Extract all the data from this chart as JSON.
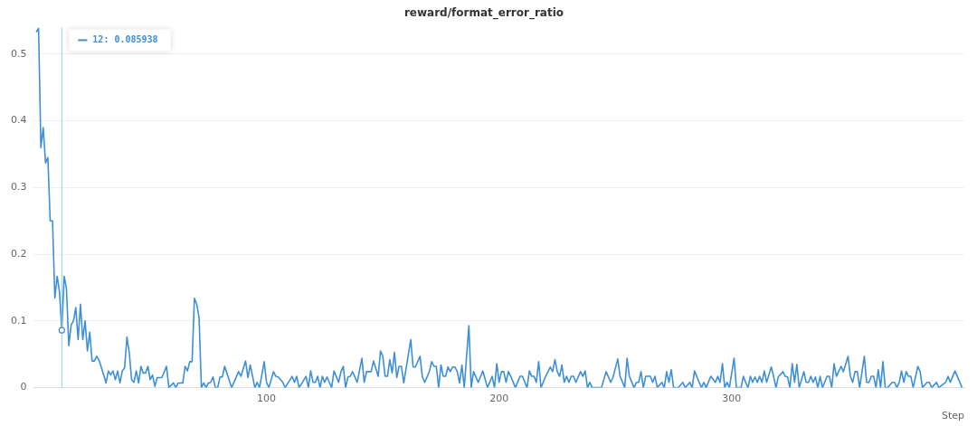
{
  "chart_data": {
    "type": "line",
    "title": "reward/format_error_ratio",
    "xlabel": "Step",
    "xlim": [
      0,
      400
    ],
    "xticks": [
      100,
      200,
      300
    ],
    "ylim": [
      0,
      0.54
    ],
    "yticks": [
      0,
      0.1,
      0.2,
      0.3,
      0.4,
      0.5
    ],
    "grid": "y",
    "legend": false,
    "marker": "none",
    "line_style": "solid",
    "ref_lines": [
      {
        "axis": "x",
        "value": 12,
        "color": "#8fd3e8"
      }
    ],
    "annotations": [
      "12: 0.085938"
    ],
    "series": [
      {
        "color": "#3d8fd6",
        "x": [
          1,
          2,
          3,
          4,
          5,
          6,
          7,
          8,
          9,
          10,
          11,
          12,
          13,
          14,
          15,
          16,
          17,
          18,
          19,
          20,
          21,
          22,
          23,
          24,
          25,
          26,
          27,
          28,
          30,
          31,
          32,
          33,
          34,
          35,
          36,
          37,
          38,
          39,
          40,
          41,
          42,
          43,
          44,
          45,
          46,
          47,
          48,
          49,
          50,
          51,
          52,
          53,
          55,
          57,
          58,
          60,
          61,
          62,
          64,
          65,
          66,
          67,
          68,
          69,
          70,
          71,
          72,
          73,
          74,
          75,
          76,
          77,
          78,
          79,
          80,
          81,
          82,
          85,
          88,
          89,
          91,
          92,
          93,
          95,
          96,
          97,
          99,
          100,
          101,
          103,
          104,
          105,
          107,
          108,
          111,
          112,
          113,
          114,
          117,
          118,
          119,
          120,
          121,
          122,
          123,
          124,
          125,
          126,
          127,
          128,
          129,
          131,
          132,
          133,
          134,
          135,
          136,
          137,
          139,
          141,
          142,
          143,
          145,
          146,
          148,
          149,
          150,
          151,
          152,
          153,
          154,
          155,
          156,
          157,
          158,
          159,
          162,
          163,
          164,
          166,
          167,
          168,
          170,
          171,
          172,
          173,
          174,
          175,
          176,
          177,
          178,
          179,
          180,
          181,
          182,
          183,
          184,
          185,
          187,
          188,
          189,
          191,
          193,
          195,
          197,
          198,
          199,
          200,
          201,
          202,
          203,
          204,
          205,
          207,
          209,
          210,
          212,
          213,
          214,
          215,
          216,
          217,
          218,
          220,
          222,
          223,
          224,
          225,
          226,
          227,
          228,
          229,
          230,
          231,
          232,
          233,
          235,
          236,
          237,
          238,
          239,
          240,
          244,
          246,
          248,
          249,
          251,
          252,
          254,
          255,
          256,
          258,
          259,
          260,
          261,
          262,
          263,
          265,
          266,
          267,
          268,
          270,
          271,
          272,
          273,
          274,
          275,
          277,
          279,
          280,
          282,
          283,
          284,
          286,
          287,
          288,
          289,
          291,
          293,
          294,
          295,
          296,
          297,
          298,
          299,
          301,
          302,
          304,
          305,
          306,
          307,
          308,
          309,
          310,
          311,
          312,
          313,
          314,
          315,
          317,
          318,
          319,
          320,
          322,
          323,
          324,
          325,
          326,
          327,
          328,
          329,
          331,
          332,
          333,
          334,
          335,
          336,
          337,
          338,
          339,
          341,
          342,
          343,
          344,
          345,
          347,
          348,
          350,
          351,
          352,
          353,
          354,
          355,
          357,
          358,
          359,
          360,
          361,
          362,
          363,
          364,
          365,
          366,
          367,
          369,
          370,
          371,
          372,
          373,
          374,
          375,
          376,
          377,
          378,
          380,
          381,
          382,
          384,
          385,
          386,
          388,
          389,
          392,
          393,
          394,
          395,
          396,
          397,
          399
        ],
        "values": [
          0.533,
          0.539,
          0.36,
          0.39,
          0.337,
          0.345,
          0.25,
          0.25,
          0.134,
          0.167,
          0.143,
          0.086,
          0.167,
          0.148,
          0.063,
          0.094,
          0.1,
          0.12,
          0.072,
          0.125,
          0.072,
          0.1,
          0.055,
          0.083,
          0.04,
          0.04,
          0.047,
          0.041,
          0.019,
          0.007,
          0.025,
          0.019,
          0.025,
          0.012,
          0.025,
          0.007,
          0.025,
          0.03,
          0.076,
          0.052,
          0.012,
          0.008,
          0.025,
          0.007,
          0.032,
          0.022,
          0.022,
          0.032,
          0.012,
          0.019,
          0.002,
          0.015,
          0.015,
          0.032,
          0,
          0.007,
          0,
          0.007,
          0.007,
          0.032,
          0.025,
          0.039,
          0.039,
          0.134,
          0.125,
          0.105,
          0,
          0.007,
          0,
          0.007,
          0.008,
          0.016,
          0,
          0,
          0.016,
          0.016,
          0.032,
          0,
          0.024,
          0.017,
          0.04,
          0.015,
          0.034,
          0,
          0.008,
          0,
          0.039,
          0.008,
          0,
          0.024,
          0.017,
          0.016,
          0.008,
          0,
          0.017,
          0.008,
          0.017,
          0,
          0.017,
          0,
          0.025,
          0.008,
          0.008,
          0.017,
          0,
          0.017,
          0.008,
          0.016,
          0.008,
          0,
          0.025,
          0.008,
          0.024,
          0.032,
          0,
          0.016,
          0.017,
          0.024,
          0.008,
          0.044,
          0.008,
          0.024,
          0.024,
          0.04,
          0.017,
          0.055,
          0.047,
          0.017,
          0.017,
          0.042,
          0.022,
          0.053,
          0.015,
          0.032,
          0.032,
          0.007,
          0.072,
          0.031,
          0.031,
          0.047,
          0.016,
          0.008,
          0.024,
          0.039,
          0.032,
          0.032,
          0,
          0.034,
          0.017,
          0.017,
          0.031,
          0.024,
          0.031,
          0.031,
          0.024,
          0.007,
          0.034,
          0,
          0.093,
          0,
          0.024,
          0.008,
          0.025,
          0,
          0.017,
          0,
          0.036,
          0.008,
          0.024,
          0.024,
          0.008,
          0.024,
          0.017,
          0,
          0.017,
          0.017,
          0,
          0.025,
          0.017,
          0.017,
          0.008,
          0.039,
          0,
          0.017,
          0.031,
          0.024,
          0.042,
          0.024,
          0.017,
          0.034,
          0.008,
          0.017,
          0.008,
          0.017,
          0.017,
          0.008,
          0.024,
          0.017,
          0.025,
          0,
          0.008,
          0,
          0,
          0.024,
          0.008,
          0.016,
          0.043,
          0.017,
          0,
          0.044,
          0.017,
          0,
          0.008,
          0.008,
          0.024,
          0,
          0.017,
          0.017,
          0.008,
          0.017,
          0,
          0.008,
          0,
          0.024,
          0.008,
          0.027,
          0,
          0,
          0.008,
          0,
          0.008,
          0,
          0.025,
          0.008,
          0,
          0.008,
          0,
          0.017,
          0.008,
          0.017,
          0.008,
          0.036,
          0,
          0.008,
          0,
          0.044,
          0,
          0,
          0.017,
          0.008,
          0,
          0.017,
          0.008,
          0.016,
          0.008,
          0.017,
          0.008,
          0.025,
          0.008,
          0.031,
          0.017,
          0,
          0.016,
          0.024,
          0.017,
          0.016,
          0,
          0.036,
          0.008,
          0.035,
          0,
          0.024,
          0.008,
          0.008,
          0.017,
          0.008,
          0.016,
          0,
          0.017,
          0,
          0.017,
          0.017,
          0,
          0.036,
          0.017,
          0.032,
          0.024,
          0.047,
          0.017,
          0.008,
          0.024,
          0.024,
          0,
          0.047,
          0.008,
          0.008,
          0.017,
          0.017,
          0,
          0.027,
          0,
          0.039,
          0,
          0,
          0.008,
          0.008,
          0,
          0.008,
          0.025,
          0.008,
          0.024,
          0.017,
          0.017,
          0,
          0.032,
          0.024,
          0,
          0.008,
          0.008,
          0,
          0.008,
          0,
          0.008,
          0.017,
          0.008,
          0.017,
          0.025,
          0.017,
          0
        ]
      }
    ]
  }
}
